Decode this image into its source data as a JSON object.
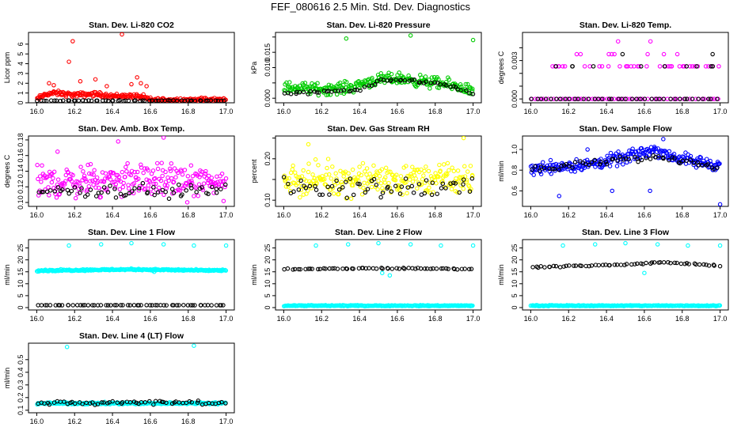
{
  "page": {
    "title": "FEF_080616  2.5 Min. Std. Dev. Diagnostics"
  },
  "colors": {
    "red": "#ff0000",
    "green": "#00cc00",
    "magenta": "#ff00ff",
    "yellow": "#ffff00",
    "blue": "#0000ff",
    "cyan": "#00ffff",
    "black": "#000000"
  },
  "chart_data": [
    {
      "type": "scatter",
      "title": "Stan. Dev. Li-820 CO2",
      "ylabel": "Licor ppm",
      "xlim": [
        16.0,
        17.0
      ],
      "x_ticks": [
        "16.0",
        "16.2",
        "16.4",
        "16.6",
        "16.8",
        "17.0"
      ],
      "ylim": [
        0,
        7.2
      ],
      "y_ticks": [
        0,
        1,
        2,
        3,
        4,
        5,
        6
      ],
      "series": [
        {
          "color": "#ff0000",
          "base": [
            [
              16.0,
              0.35
            ],
            [
              16.05,
              0.9
            ],
            [
              16.1,
              1.0
            ],
            [
              16.2,
              0.8
            ],
            [
              16.3,
              0.9
            ],
            [
              16.4,
              0.7
            ],
            [
              16.5,
              0.7
            ],
            [
              16.56,
              0.6
            ],
            [
              16.6,
              0.3
            ],
            [
              17.0,
              0.3
            ]
          ],
          "spread": 0.35,
          "outliers": [
            [
              16.065,
              2.0
            ],
            [
              16.09,
              1.8
            ],
            [
              16.17,
              4.2
            ],
            [
              16.19,
              6.3
            ],
            [
              16.23,
              2.2
            ],
            [
              16.31,
              2.4
            ],
            [
              16.37,
              1.7
            ],
            [
              16.45,
              7.0
            ],
            [
              16.5,
              1.9
            ],
            [
              16.53,
              2.6
            ],
            [
              16.55,
              2.0
            ],
            [
              16.58,
              1.7
            ]
          ]
        },
        {
          "color": "#000000",
          "base": [
            [
              16.0,
              0.22
            ],
            [
              17.0,
              0.22
            ]
          ],
          "spread": 0.05,
          "outliers": []
        }
      ]
    },
    {
      "type": "scatter",
      "title": "Stan. Dev. Li-820 Pressure",
      "ylabel": "kPa",
      "xlim": [
        16.0,
        17.0
      ],
      "x_ticks": [
        "16.0",
        "16.2",
        "16.4",
        "16.6",
        "16.8",
        "17.0"
      ],
      "ylim": [
        -0.0015,
        0.0215
      ],
      "y_ticks": [
        0,
        0.005,
        0.01,
        0.015,
        0.02
      ],
      "y_tick_labels": [
        "0.000",
        "",
        "0.010",
        "",
        ""
      ],
      "y_tick_labels_extra": {
        "0.015": "0.015"
      },
      "series": [
        {
          "color": "#00cc00",
          "base": [
            [
              16.0,
              0.0035
            ],
            [
              16.2,
              0.003
            ],
            [
              16.35,
              0.0035
            ],
            [
              16.45,
              0.0055
            ],
            [
              16.6,
              0.0065
            ],
            [
              16.8,
              0.005
            ],
            [
              16.95,
              0.0035
            ],
            [
              17.0,
              0.002
            ]
          ],
          "spread": 0.0028,
          "outliers": [
            [
              16.33,
              0.0195
            ],
            [
              16.67,
              0.0205
            ],
            [
              17.0,
              0.019
            ]
          ]
        },
        {
          "color": "#000000",
          "base": [
            [
              16.0,
              0.0015
            ],
            [
              16.4,
              0.0025
            ],
            [
              16.5,
              0.0055
            ],
            [
              16.65,
              0.006
            ],
            [
              16.85,
              0.0045
            ],
            [
              17.0,
              0.0015
            ]
          ],
          "spread": 0.0008,
          "outliers": []
        }
      ]
    },
    {
      "type": "scatter",
      "title": "Stan. Dev. Li-820 Temp.",
      "ylabel": "degrees C",
      "xlim": [
        16.0,
        17.0
      ],
      "x_ticks": [
        "16.0",
        "16.2",
        "16.4",
        "16.6",
        "16.8",
        "17.0"
      ],
      "ylim": [
        -0.0003,
        0.0052
      ],
      "y_ticks": [
        0,
        0.001,
        0.002,
        0.003,
        0.004
      ],
      "y_tick_labels": [
        "0.000",
        "",
        "",
        "0.003",
        ""
      ],
      "levels": [
        0,
        0.00255,
        0.0035,
        0.0045
      ],
      "series": [
        {
          "color": "#ff00ff",
          "level_counts": [
            60,
            40,
            8,
            2
          ]
        },
        {
          "color": "#000000",
          "level_counts": [
            40,
            10,
            2,
            0
          ]
        }
      ]
    },
    {
      "type": "scatter",
      "title": "Stan. Dev. Amb. Box Temp.",
      "ylabel": "degrees C",
      "xlim": [
        16.0,
        17.0
      ],
      "x_ticks": [
        "16.0",
        "16.2",
        "16.4",
        "16.6",
        "16.8",
        "17.0"
      ],
      "ylim": [
        0.095,
        0.185
      ],
      "y_ticks": [
        0.1,
        0.12,
        0.14,
        0.16,
        0.18
      ],
      "y_tick_labels": [
        "0.10",
        "0.12",
        "0.14",
        "0.16",
        "0.18"
      ],
      "series": [
        {
          "color": "#ff00ff",
          "base": [
            [
              16.0,
              0.125
            ],
            [
              16.5,
              0.13
            ],
            [
              17.0,
              0.125
            ]
          ],
          "spread": 0.03,
          "outliers": [
            [
              16.67,
              0.183
            ],
            [
              16.43,
              0.178
            ],
            [
              16.11,
              0.165
            ]
          ]
        },
        {
          "color": "#000000",
          "base": [
            [
              16.0,
              0.115
            ],
            [
              17.0,
              0.115
            ]
          ],
          "spread": 0.012,
          "outliers": []
        }
      ]
    },
    {
      "type": "scatter",
      "title": "Stan. Dev. Gas Stream RH",
      "ylabel": "percent",
      "xlim": [
        16.0,
        17.0
      ],
      "x_ticks": [
        "16.0",
        "16.2",
        "16.4",
        "16.6",
        "16.8",
        "17.0"
      ],
      "ylim": [
        0.085,
        0.255
      ],
      "y_ticks": [
        0.1,
        0.15,
        0.2,
        0.25
      ],
      "y_tick_labels": [
        "0.10",
        "",
        "0.20",
        ""
      ],
      "series": [
        {
          "color": "#ffff00",
          "base": [
            [
              16.0,
              0.15
            ],
            [
              17.0,
              0.15
            ]
          ],
          "spread": 0.055,
          "outliers": [
            [
              16.95,
              0.25
            ],
            [
              16.13,
              0.235
            ]
          ]
        },
        {
          "color": "#000000",
          "base": [
            [
              16.0,
              0.13
            ],
            [
              17.0,
              0.13
            ]
          ],
          "spread": 0.035,
          "outliers": []
        }
      ]
    },
    {
      "type": "scatter",
      "title": "Stan. Dev. Sample Flow",
      "ylabel": "ml/min",
      "xlim": [
        16.0,
        17.0
      ],
      "x_ticks": [
        "16.0",
        "16.2",
        "16.4",
        "16.6",
        "16.8",
        "17.0"
      ],
      "ylim": [
        0.45,
        1.13
      ],
      "y_ticks": [
        0.6,
        0.8,
        1.0
      ],
      "y_tick_labels": [
        "0.6",
        "0.8",
        "1.0"
      ],
      "series": [
        {
          "color": "#0000ff",
          "base": [
            [
              16.0,
              0.82
            ],
            [
              16.3,
              0.85
            ],
            [
              16.5,
              0.92
            ],
            [
              16.65,
              1.0
            ],
            [
              16.8,
              0.9
            ],
            [
              17.0,
              0.85
            ]
          ],
          "spread": 0.09,
          "outliers": [
            [
              16.15,
              0.55
            ],
            [
              16.43,
              0.6
            ],
            [
              16.63,
              0.6
            ],
            [
              17.0,
              0.47
            ],
            [
              16.3,
              1.0
            ],
            [
              16.7,
              1.1
            ]
          ]
        },
        {
          "color": "#000000",
          "base": [
            [
              16.0,
              0.8
            ],
            [
              16.5,
              0.9
            ],
            [
              16.7,
              0.93
            ],
            [
              17.0,
              0.83
            ]
          ],
          "spread": 0.05,
          "outliers": []
        }
      ]
    },
    {
      "type": "scatter",
      "title": "Stan. Dev. Line 1 Flow",
      "ylabel": "ml/min",
      "xlim": [
        16.0,
        17.0
      ],
      "x_ticks": [
        "16.0",
        "16.2",
        "16.4",
        "16.6",
        "16.8",
        "17.0"
      ],
      "ylim": [
        -1,
        28.5
      ],
      "y_ticks": [
        0,
        5,
        10,
        15,
        20,
        25
      ],
      "series": [
        {
          "color": "#00ffff",
          "base": [
            [
              16.0,
              15.5
            ],
            [
              16.5,
              16.0
            ],
            [
              17.0,
              15.5
            ]
          ],
          "spread": 0.5,
          "outliers": [
            [
              16.17,
              26.0
            ],
            [
              16.34,
              26.5
            ],
            [
              16.5,
              27.0
            ],
            [
              16.67,
              26.5
            ],
            [
              16.83,
              26.0
            ],
            [
              17.0,
              26.0
            ],
            [
              16.62,
              15.0
            ]
          ]
        },
        {
          "color": "#000000",
          "base": [
            [
              16.0,
              1.0
            ],
            [
              17.0,
              1.0
            ]
          ],
          "spread": 0.05,
          "outliers": []
        }
      ]
    },
    {
      "type": "scatter",
      "title": "Stan. Dev. Line 2 Flow",
      "ylabel": "ml/min",
      "xlim": [
        16.0,
        17.0
      ],
      "x_ticks": [
        "16.0",
        "16.2",
        "16.4",
        "16.6",
        "16.8",
        "17.0"
      ],
      "ylim": [
        -1,
        28.5
      ],
      "y_ticks": [
        0,
        5,
        10,
        15,
        20,
        25
      ],
      "series": [
        {
          "color": "#00ffff",
          "base": [
            [
              16.0,
              0.8
            ],
            [
              17.0,
              0.8
            ]
          ],
          "spread": 0.3,
          "outliers": [
            [
              16.17,
              26.0
            ],
            [
              16.34,
              26.5
            ],
            [
              16.5,
              27.0
            ],
            [
              16.67,
              26.5
            ],
            [
              16.83,
              26.0
            ],
            [
              17.0,
              26.0
            ],
            [
              16.52,
              14.5
            ],
            [
              16.56,
              13.5
            ]
          ]
        },
        {
          "color": "#000000",
          "base": [
            [
              16.0,
              16.0
            ],
            [
              16.5,
              16.5
            ],
            [
              17.0,
              16.2
            ]
          ],
          "spread": 0.4,
          "outliers": []
        }
      ]
    },
    {
      "type": "scatter",
      "title": "Stan. Dev. Line 3 Flow",
      "ylabel": "ml/min",
      "xlim": [
        16.0,
        17.0
      ],
      "x_ticks": [
        "16.0",
        "16.2",
        "16.4",
        "16.6",
        "16.8",
        "17.0"
      ],
      "ylim": [
        -1,
        28.5
      ],
      "y_ticks": [
        0,
        5,
        10,
        15,
        20,
        25
      ],
      "series": [
        {
          "color": "#00ffff",
          "base": [
            [
              16.0,
              0.8
            ],
            [
              17.0,
              0.8
            ]
          ],
          "spread": 0.3,
          "outliers": [
            [
              16.17,
              26.0
            ],
            [
              16.34,
              26.5
            ],
            [
              16.5,
              27.0
            ],
            [
              16.67,
              26.5
            ],
            [
              16.83,
              26.0
            ],
            [
              17.0,
              26.0
            ],
            [
              16.6,
              14.5
            ]
          ]
        },
        {
          "color": "#000000",
          "base": [
            [
              16.0,
              17.0
            ],
            [
              16.5,
              18.0
            ],
            [
              16.7,
              19.0
            ],
            [
              17.0,
              17.5
            ]
          ],
          "spread": 0.4,
          "outliers": []
        }
      ]
    },
    {
      "type": "scatter",
      "title": "Stan. Dev. Line 4 (LT) Flow",
      "ylabel": "ml/min",
      "xlim": [
        16.0,
        17.0
      ],
      "x_ticks": [
        "16.0",
        "16.2",
        "16.4",
        "16.6",
        "16.8",
        "17.0"
      ],
      "ylim": [
        0.08,
        0.63
      ],
      "y_ticks": [
        0.1,
        0.2,
        0.3,
        0.4,
        0.5
      ],
      "y_tick_labels": [
        "0.1",
        "0.2",
        "0.3",
        "0.4",
        "0.5"
      ],
      "series": [
        {
          "color": "#00ffff",
          "base": [
            [
              16.0,
              0.155
            ],
            [
              17.0,
              0.155
            ]
          ],
          "spread": 0.012,
          "outliers": [
            [
              16.16,
              0.6
            ],
            [
              16.5,
              0.65
            ],
            [
              16.83,
              0.61
            ]
          ]
        },
        {
          "color": "#000000",
          "base": [
            [
              16.0,
              0.16
            ],
            [
              17.0,
              0.16
            ]
          ],
          "spread": 0.025,
          "outliers": []
        }
      ]
    }
  ]
}
